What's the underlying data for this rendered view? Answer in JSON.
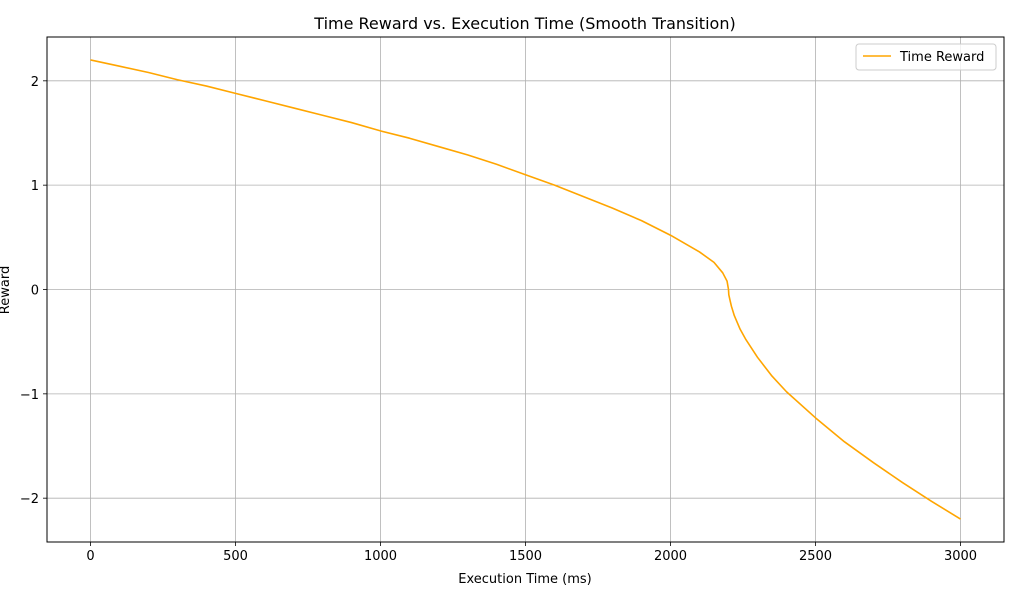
{
  "chart_data": {
    "type": "line",
    "title": "Time Reward vs. Execution Time (Smooth Transition)",
    "xlabel": "Execution Time (ms)",
    "ylabel": "Reward",
    "xlim": [
      -150,
      3150
    ],
    "ylim": [
      -2.42,
      2.42
    ],
    "x_ticks": [
      0,
      500,
      1000,
      1500,
      2000,
      2500,
      3000
    ],
    "x_tick_labels": [
      "0",
      "500",
      "1000",
      "1500",
      "2000",
      "2500",
      "3000"
    ],
    "y_ticks": [
      2,
      1,
      0,
      -1,
      -2
    ],
    "y_tick_labels": [
      "2",
      "1",
      "0",
      "−1",
      "−2"
    ],
    "grid": true,
    "legend_position": "top-right",
    "series": [
      {
        "name": "Time Reward",
        "color": "#ffa500",
        "x": [
          0,
          100,
          200,
          300,
          400,
          500,
          600,
          700,
          800,
          900,
          1000,
          1100,
          1200,
          1300,
          1400,
          1500,
          1600,
          1700,
          1800,
          1900,
          2000,
          2050,
          2100,
          2150,
          2180,
          2195,
          2200,
          2201,
          2205,
          2210,
          2220,
          2240,
          2260,
          2300,
          2350,
          2400,
          2500,
          2600,
          2700,
          2800,
          2900,
          3000
        ],
        "y": [
          2.2,
          2.14,
          2.08,
          2.01,
          1.95,
          1.88,
          1.81,
          1.74,
          1.67,
          1.6,
          1.52,
          1.45,
          1.37,
          1.29,
          1.2,
          1.1,
          1.0,
          0.89,
          0.78,
          0.66,
          0.52,
          0.44,
          0.36,
          0.26,
          0.16,
          0.08,
          0.0,
          -0.05,
          -0.1,
          -0.16,
          -0.25,
          -0.38,
          -0.48,
          -0.65,
          -0.83,
          -0.98,
          -1.23,
          -1.46,
          -1.66,
          -1.85,
          -2.03,
          -2.2
        ]
      }
    ]
  }
}
